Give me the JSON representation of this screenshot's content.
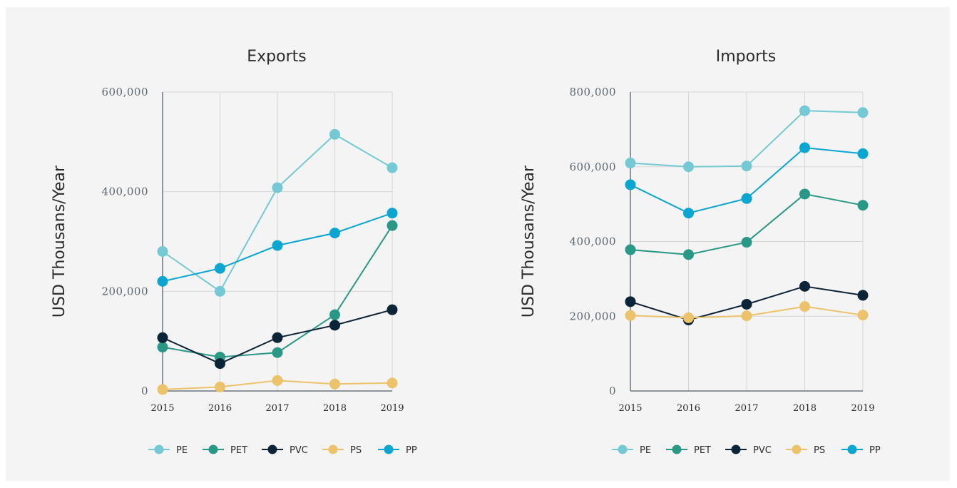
{
  "colors": {
    "PE": "#74c9d4",
    "PET": "#2a9886",
    "PVC": "#0c2437",
    "PS": "#ecc26a",
    "PP": "#0aa5d1"
  },
  "chart_data": [
    {
      "type": "line",
      "title": "Exports",
      "xlabel": "",
      "ylabel": "USD Thousans/Year",
      "x": [
        "2015",
        "2016",
        "2017",
        "2018",
        "2019"
      ],
      "ylim": [
        0,
        600000
      ],
      "yticks": [
        0,
        200000,
        400000,
        600000
      ],
      "ytick_labels": [
        "0",
        "200,000",
        "400,000",
        "600,000"
      ],
      "grid": true,
      "legend_position": "bottom",
      "series": [
        {
          "name": "PE",
          "values": [
            280000,
            200000,
            408000,
            515000,
            448000
          ]
        },
        {
          "name": "PET",
          "values": [
            88000,
            68000,
            77000,
            153000,
            332000
          ]
        },
        {
          "name": "PVC",
          "values": [
            107000,
            55000,
            107000,
            132000,
            163000
          ]
        },
        {
          "name": "PS",
          "values": [
            3000,
            8000,
            21000,
            14000,
            16000
          ]
        },
        {
          "name": "PP",
          "values": [
            220000,
            246000,
            292000,
            317000,
            357000
          ]
        }
      ]
    },
    {
      "type": "line",
      "title": "Imports",
      "xlabel": "",
      "ylabel": "USD Thousans/Year",
      "x": [
        "2015",
        "2016",
        "2017",
        "2018",
        "2019"
      ],
      "ylim": [
        0,
        800000
      ],
      "yticks": [
        0,
        200000,
        400000,
        600000,
        800000
      ],
      "ytick_labels": [
        "0",
        "200,000",
        "400,000",
        "600,000",
        "800,000"
      ],
      "grid": true,
      "legend_position": "bottom",
      "series": [
        {
          "name": "PE",
          "values": [
            610000,
            600000,
            602000,
            750000,
            745000
          ]
        },
        {
          "name": "PET",
          "values": [
            378000,
            365000,
            398000,
            527000,
            497000
          ]
        },
        {
          "name": "PVC",
          "values": [
            239000,
            190000,
            232000,
            280000,
            256000
          ]
        },
        {
          "name": "PS",
          "values": [
            202000,
            196000,
            201000,
            226000,
            203000
          ]
        },
        {
          "name": "PP",
          "values": [
            552000,
            476000,
            515000,
            651000,
            635000
          ]
        }
      ]
    }
  ]
}
